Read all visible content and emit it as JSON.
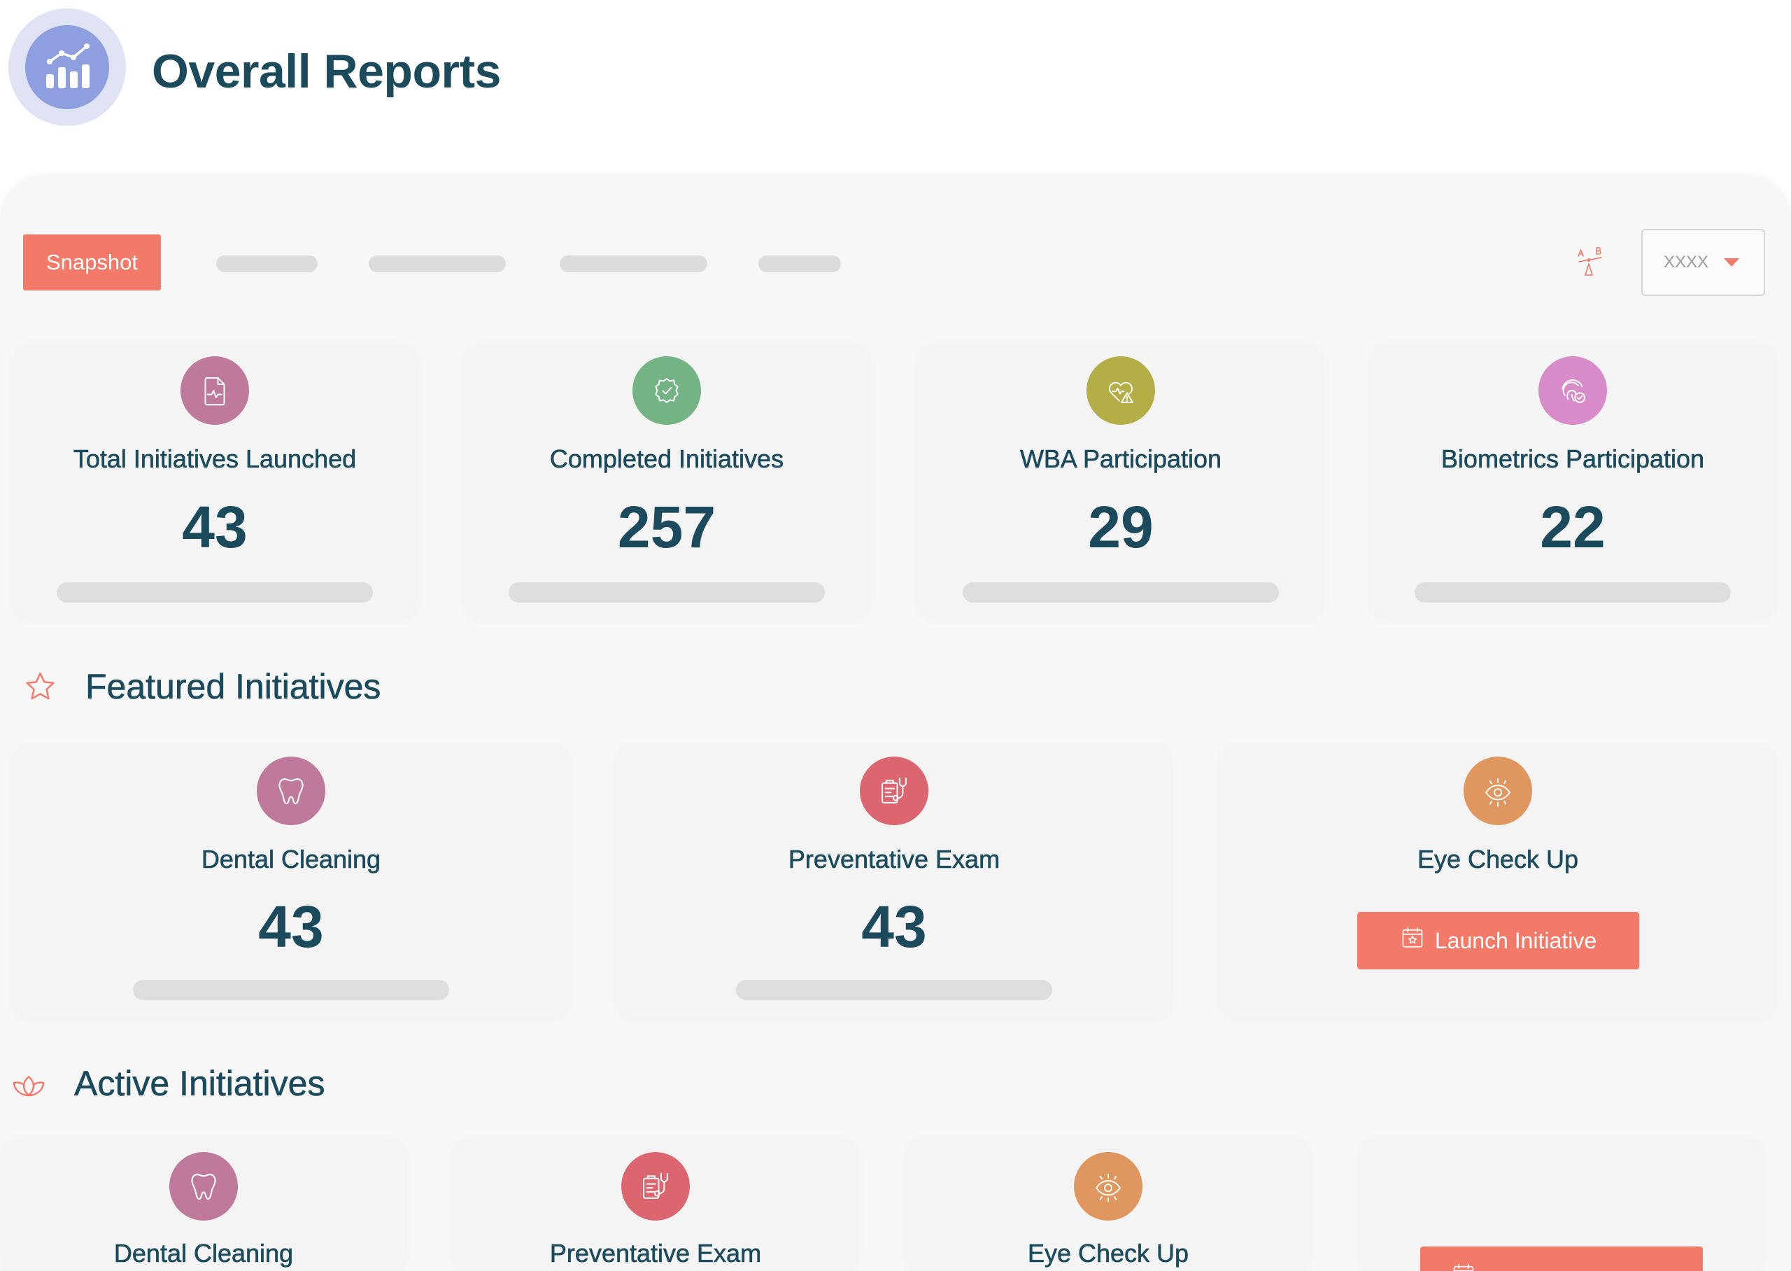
{
  "header": {
    "title": "Overall Reports",
    "icon": "bar-chart-icon",
    "icon_color": "#8e9fe0"
  },
  "toolbar": {
    "active_tab": "Snapshot",
    "compare_icon": "ab-balance-icon",
    "dropdown": {
      "value": "XXXX",
      "icon": "caret-down-icon"
    }
  },
  "stats": [
    {
      "label": "Total Initiatives Launched",
      "value": 43,
      "icon": "document-pulse-icon",
      "color": "#bf7a9b"
    },
    {
      "label": "Completed Initiatives",
      "value": 257,
      "icon": "badge-check-icon",
      "color": "#74b384"
    },
    {
      "label": "WBA Participation",
      "value": 29,
      "icon": "heart-warning-icon",
      "color": "#b4ae46"
    },
    {
      "label": "Biometrics Participation",
      "value": 22,
      "icon": "fingerprint-check-icon",
      "color": "#d78bc8"
    }
  ],
  "featured": {
    "title": "Featured Initiatives",
    "icon": "star-icon",
    "items": [
      {
        "label": "Dental Cleaning",
        "value": 43,
        "icon": "tooth-icon",
        "color": "#bf7a9b"
      },
      {
        "label": "Preventative Exam",
        "value": 43,
        "icon": "clipboard-stethoscope-icon",
        "color": "#dc6670"
      },
      {
        "label": "Eye Check Up",
        "icon": "eye-icon",
        "color": "#e0975f",
        "button": "Launch Initiative",
        "button_icon": "calendar-star-icon"
      }
    ]
  },
  "active": {
    "title": "Active Initiatives",
    "icon": "lotus-icon",
    "items": [
      {
        "label": "Dental Cleaning",
        "icon": "tooth-icon",
        "color": "#bf7a9b"
      },
      {
        "label": "Preventative Exam",
        "icon": "clipboard-stethoscope-icon",
        "color": "#dc6670"
      },
      {
        "label": "Eye Check Up",
        "icon": "eye-icon",
        "color": "#e0975f"
      },
      {
        "button_icon": "calendar-star-icon"
      }
    ]
  },
  "theme": {
    "accent": "#f37a68",
    "text": "#1a4a5c",
    "panel": "#f7f7f7",
    "skeleton": "#dedede"
  }
}
